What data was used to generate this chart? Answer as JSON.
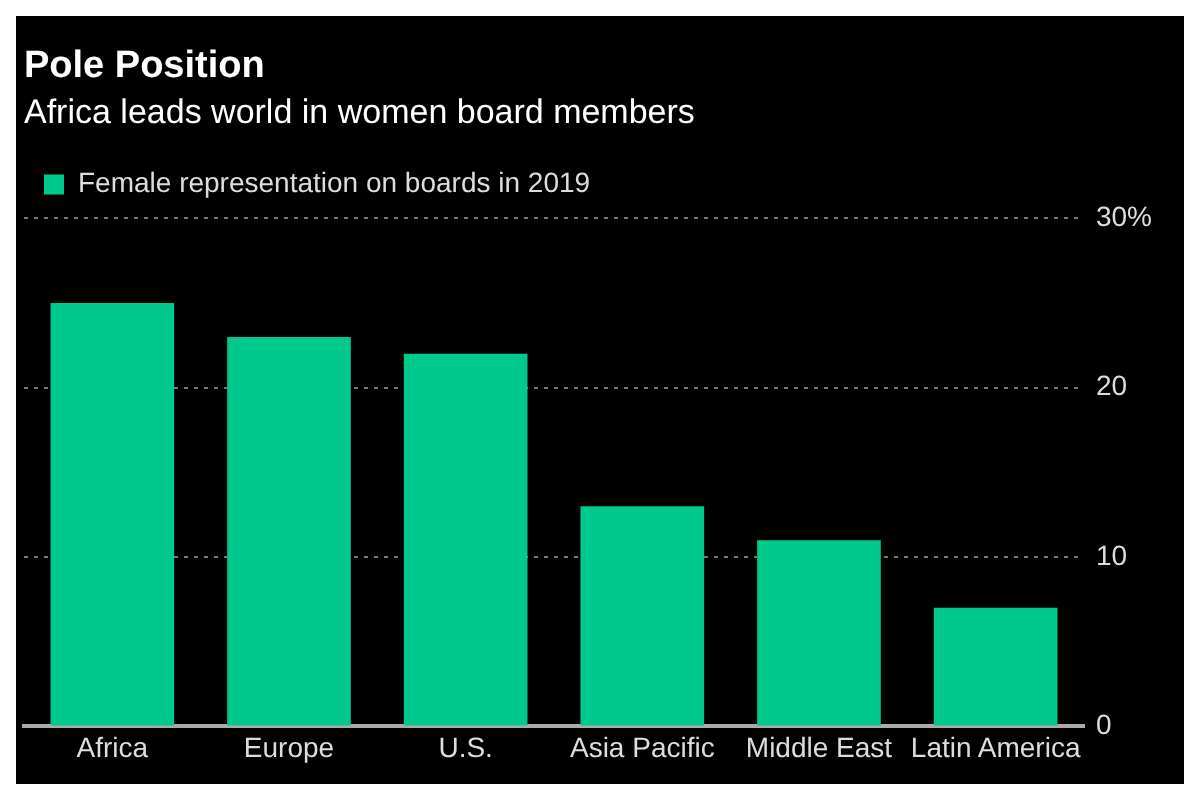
{
  "chart_data": {
    "type": "bar",
    "title": "Pole Position",
    "subtitle": "Africa leads world in women board members",
    "categories": [
      "Africa",
      "Europe",
      "U.S.",
      "Asia Pacific",
      "Middle East",
      "Latin America"
    ],
    "series": [
      {
        "name": "Female representation on boards in 2019",
        "color": "#00c98d",
        "values": [
          25,
          23,
          22,
          13,
          11,
          7
        ]
      }
    ],
    "ylim": [
      0,
      30
    ],
    "yticks": [
      0,
      10,
      20,
      {
        "value": 30,
        "label": "30%"
      }
    ],
    "grid": "y",
    "legend": "top left"
  }
}
